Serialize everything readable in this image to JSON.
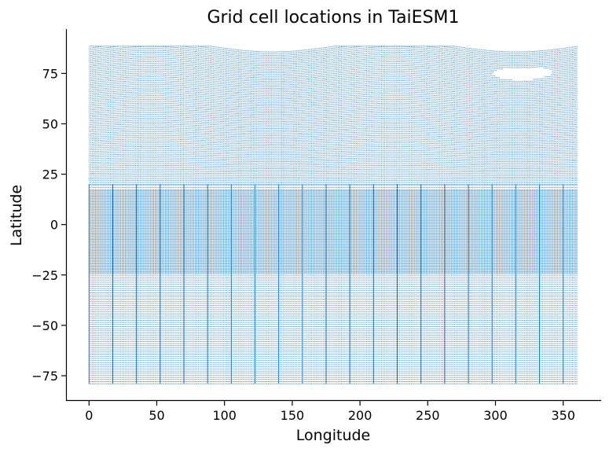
{
  "chart_data": {
    "type": "scatter",
    "title": "Grid cell locations in TaiESM1",
    "xlabel": "Longitude",
    "ylabel": "Latitude",
    "xlim": [
      -17,
      378
    ],
    "ylim": [
      -87.5,
      97
    ],
    "xticks": [
      0,
      50,
      100,
      150,
      200,
      250,
      300,
      350
    ],
    "yticks": [
      -75,
      -50,
      -25,
      0,
      25,
      50,
      75
    ],
    "ytick_labels": [
      "−75",
      "−50",
      "−25",
      "0",
      "25",
      "50",
      "75"
    ],
    "grid": false,
    "legend": "none",
    "marker_color": "#1f77b4",
    "description_data": {
      "lon_range": [
        0,
        360
      ],
      "lat_range": [
        -79,
        88.5
      ],
      "north_pole_hole_center": [
        320,
        77
      ],
      "dense_band_lat": [
        -25,
        17
      ]
    }
  }
}
